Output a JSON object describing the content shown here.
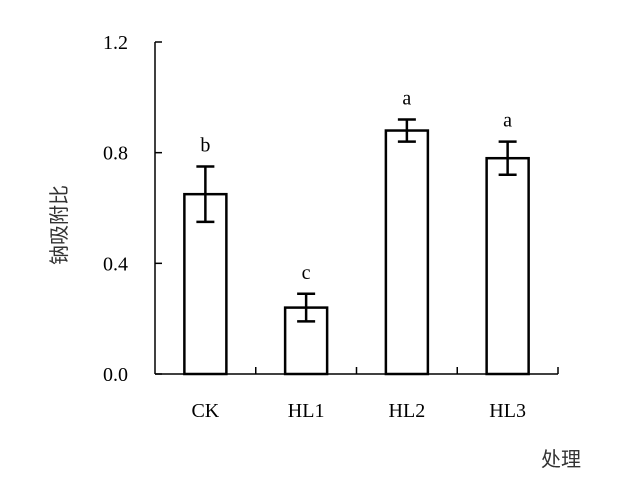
{
  "chart_data": {
    "type": "bar",
    "categories": [
      "CK",
      "HL1",
      "HL2",
      "HL3"
    ],
    "values": [
      0.65,
      0.24,
      0.88,
      0.78
    ],
    "errors": [
      0.1,
      0.05,
      0.04,
      0.06
    ],
    "significance": [
      "b",
      "c",
      "a",
      "a"
    ],
    "xlabel": "处理",
    "ylabel": "钠吸附比",
    "ylim": [
      0,
      1.2
    ],
    "yticks": [
      0.0,
      0.4,
      0.8,
      1.2
    ],
    "ytick_labels": [
      "0.0",
      "0.4",
      "0.8",
      "1.2"
    ],
    "grid": false,
    "bar_fill": "#ffffff",
    "bar_stroke": "#000000"
  }
}
